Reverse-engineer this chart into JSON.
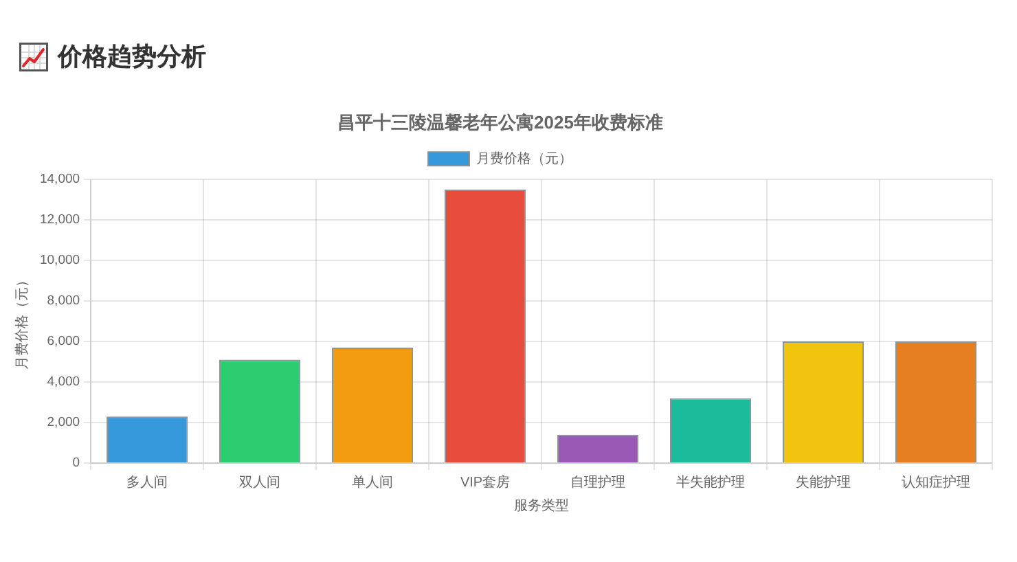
{
  "chart_data": {
    "type": "bar",
    "title": "价格趋势分析",
    "subtitle": "昌平十三陵温馨老年公寓2025年收费标准",
    "xlabel": "服务类型",
    "ylabel": "月费价格（元）",
    "categories": [
      "多人间",
      "双人间",
      "单人间",
      "VIP套房",
      "自理护理",
      "半失能护理",
      "失能护理",
      "认知症护理"
    ],
    "series": [
      {
        "name": "月费价格（元）",
        "colors": [
          "#3498db",
          "#2ecc71",
          "#f39c12",
          "#e74c3c",
          "#9b59b6",
          "#1abc9c",
          "#f1c40f",
          "#e67e22"
        ],
        "values": [
          2300,
          5100,
          5700,
          13500,
          1400,
          3200,
          6000,
          6000
        ]
      }
    ],
    "ylim": [
      0,
      14000
    ],
    "yticks": [
      0,
      {
        "value": 2000,
        "label": "2,000"
      },
      {
        "value": 4000,
        "label": "4,000"
      },
      {
        "value": 6000,
        "label": "6,000"
      },
      {
        "value": 8000,
        "label": "8,000"
      },
      {
        "value": 10000,
        "label": "10,000"
      },
      {
        "value": 12000,
        "label": "12,000"
      },
      {
        "value": 14000,
        "label": "14,000"
      }
    ],
    "grid": true,
    "legend": "top"
  }
}
